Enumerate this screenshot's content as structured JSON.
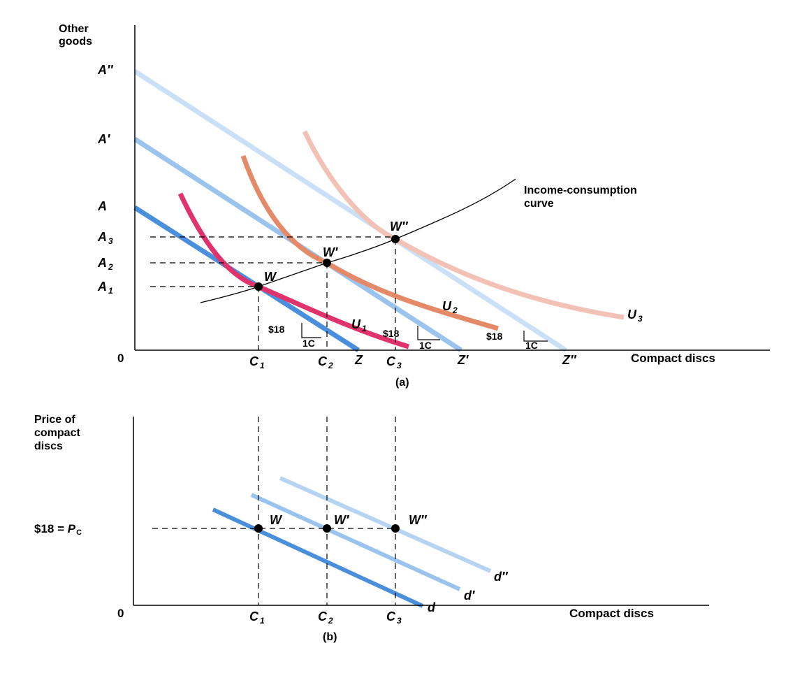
{
  "panel_a": {
    "y_axis_label": [
      "Other",
      "goods"
    ],
    "x_axis_label": "Compact discs",
    "origin": "0",
    "panel_label": "(a)",
    "y_ticks": [
      {
        "main": "A",
        "sub": "",
        "mark": "″"
      },
      {
        "main": "A",
        "sub": "",
        "mark": "′"
      },
      {
        "main": "A",
        "sub": "",
        "mark": ""
      },
      {
        "main": "A",
        "sub": "3",
        "mark": ""
      },
      {
        "main": "A",
        "sub": "2",
        "mark": ""
      },
      {
        "main": "A",
        "sub": "1",
        "mark": ""
      }
    ],
    "x_ticks": [
      {
        "main": "C",
        "sub": "1",
        "mark": ""
      },
      {
        "main": "C",
        "sub": "2",
        "mark": ""
      },
      {
        "main": "Z",
        "sub": "",
        "mark": ""
      },
      {
        "main": "C",
        "sub": "3",
        "mark": ""
      },
      {
        "main": "Z",
        "sub": "",
        "mark": "′"
      },
      {
        "main": "Z",
        "sub": "",
        "mark": "″"
      }
    ],
    "points": [
      {
        "main": "W",
        "mark": ""
      },
      {
        "main": "W",
        "mark": "′"
      },
      {
        "main": "W",
        "mark": "″"
      }
    ],
    "utility_labels": [
      {
        "main": "U",
        "sub": "1"
      },
      {
        "main": "U",
        "sub": "2"
      },
      {
        "main": "U",
        "sub": "3"
      }
    ],
    "income_curve_label": [
      "Income-consumption",
      "curve"
    ],
    "slope_triangles": [
      {
        "price": "$18",
        "unit": "1C"
      },
      {
        "price": "$18",
        "unit": "1C"
      },
      {
        "price": "$18",
        "unit": "1C"
      }
    ],
    "colors": {
      "budget_A": "#4a8fdc",
      "budget_A1": "#9ac4ee",
      "budget_A2": "#c9e0f6",
      "U1": "#e0336b",
      "U2": "#e58a68",
      "U3": "#f3c2b6",
      "income_curve": "#000000"
    }
  },
  "panel_b": {
    "y_axis_label": [
      "Price of",
      "compact",
      "discs"
    ],
    "x_axis_label": "Compact discs",
    "origin": "0",
    "panel_label": "(b)",
    "price_label": {
      "text": "$18 = ",
      "main": "P",
      "sub": "C"
    },
    "x_ticks": [
      {
        "main": "C",
        "sub": "1"
      },
      {
        "main": "C",
        "sub": "2"
      },
      {
        "main": "C",
        "sub": "3"
      }
    ],
    "points": [
      {
        "main": "W",
        "mark": ""
      },
      {
        "main": "W",
        "mark": "′"
      },
      {
        "main": "W",
        "mark": "″"
      }
    ],
    "demand_labels": [
      {
        "main": "d",
        "mark": ""
      },
      {
        "main": "d",
        "mark": "′"
      },
      {
        "main": "d",
        "mark": "″"
      }
    ],
    "colors": {
      "d": "#4a8fdc",
      "d1": "#9ac4ee",
      "d2": "#b6d4f2"
    }
  }
}
